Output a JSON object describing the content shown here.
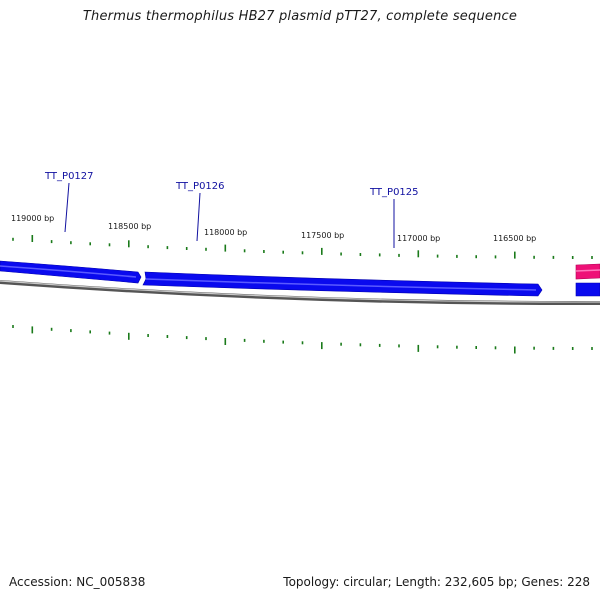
{
  "title": "Thermus thermophilus HB27 plasmid pTT27, complete sequence",
  "footer": {
    "accession": "Accession: NC_005838",
    "summary": "Topology: circular; Length: 232,605 bp; Genes: 228"
  },
  "gene_labels": [
    "TT_P0127",
    "TT_P0126",
    "TT_P0125"
  ],
  "bp_labels": [
    "119000 bp",
    "118500 bp",
    "118000 bp",
    "117500 bp",
    "117000 bp",
    "116500 bp"
  ],
  "colors": {
    "forward_gene": "#0000ee",
    "reverse_gene": "#ee1177",
    "backbone": "#808080",
    "tick": "#1a7a1a",
    "gene_label": "#1010a0"
  }
}
